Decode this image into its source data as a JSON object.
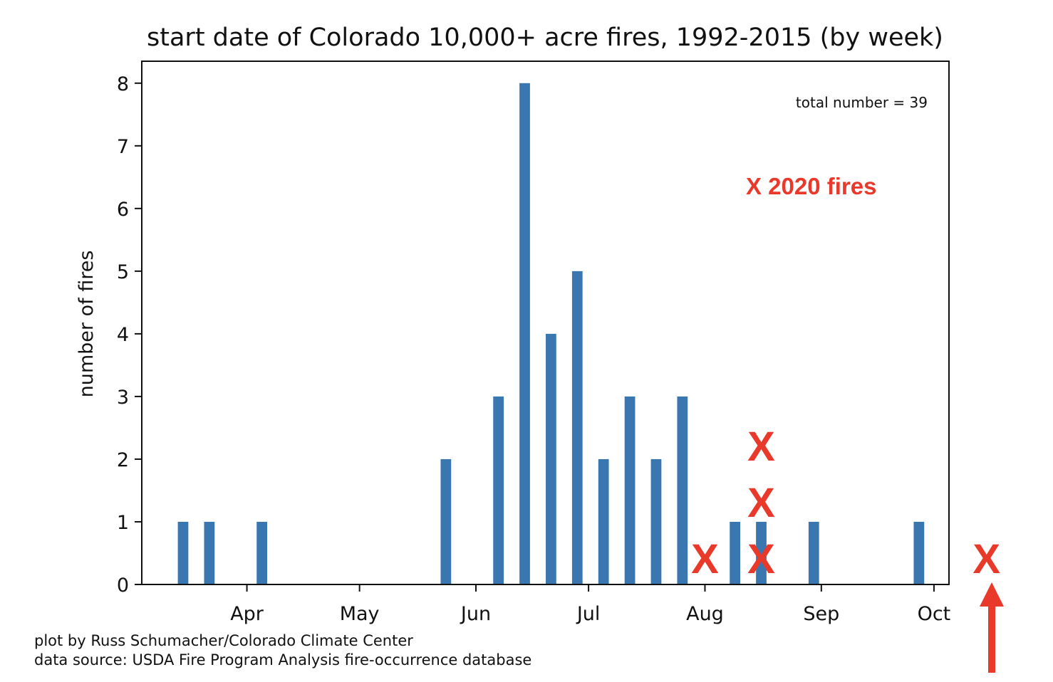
{
  "chart_data": {
    "type": "bar",
    "title": "start date of Colorado 10,000+ acre fires, 1992-2015 (by week)",
    "xlabel": "",
    "ylabel": "number of fires",
    "ylim": [
      0,
      8.35
    ],
    "yticks": [
      0,
      1,
      2,
      3,
      4,
      5,
      6,
      7,
      8
    ],
    "xlim": [
      "2015-03-04",
      "2015-10-05"
    ],
    "xticks": [
      {
        "label": "Apr",
        "date": "2015-04-01"
      },
      {
        "label": "May",
        "date": "2015-05-01"
      },
      {
        "label": "Jun",
        "date": "2015-06-01"
      },
      {
        "label": "Jul",
        "date": "2015-07-01"
      },
      {
        "label": "Aug",
        "date": "2015-08-01"
      },
      {
        "label": "Sep",
        "date": "2015-09-01"
      },
      {
        "label": "Oct",
        "date": "2015-10-01"
      }
    ],
    "bars": [
      {
        "date": "2015-03-15",
        "value": 1
      },
      {
        "date": "2015-03-22",
        "value": 1
      },
      {
        "date": "2015-04-05",
        "value": 1
      },
      {
        "date": "2015-05-24",
        "value": 2
      },
      {
        "date": "2015-06-07",
        "value": 3
      },
      {
        "date": "2015-06-14",
        "value": 8
      },
      {
        "date": "2015-06-21",
        "value": 4
      },
      {
        "date": "2015-06-28",
        "value": 5
      },
      {
        "date": "2015-07-05",
        "value": 2
      },
      {
        "date": "2015-07-12",
        "value": 3
      },
      {
        "date": "2015-07-19",
        "value": 2
      },
      {
        "date": "2015-07-26",
        "value": 3
      },
      {
        "date": "2015-08-09",
        "value": 1
      },
      {
        "date": "2015-08-16",
        "value": 1
      },
      {
        "date": "2015-08-30",
        "value": 1
      },
      {
        "date": "2015-09-27",
        "value": 1
      }
    ],
    "bar_color": "#3a76b0",
    "annotations": {
      "total": "total number = 39",
      "legend": "X 2020 fires"
    },
    "markers_2020": {
      "symbol": "X",
      "color": "#e8392b",
      "points": [
        {
          "date": "2015-08-01",
          "stack": 1
        },
        {
          "date": "2015-08-16",
          "stack": 1
        },
        {
          "date": "2015-08-16",
          "stack": 2
        },
        {
          "date": "2015-08-16",
          "stack": 3
        },
        {
          "date": "2015-10-15",
          "stack": 1
        }
      ]
    },
    "credit_lines": [
      "plot by Russ Schumacher/Colorado Climate Center",
      "data source: USDA Fire Program Analysis fire-occurrence database"
    ],
    "grid": false
  }
}
